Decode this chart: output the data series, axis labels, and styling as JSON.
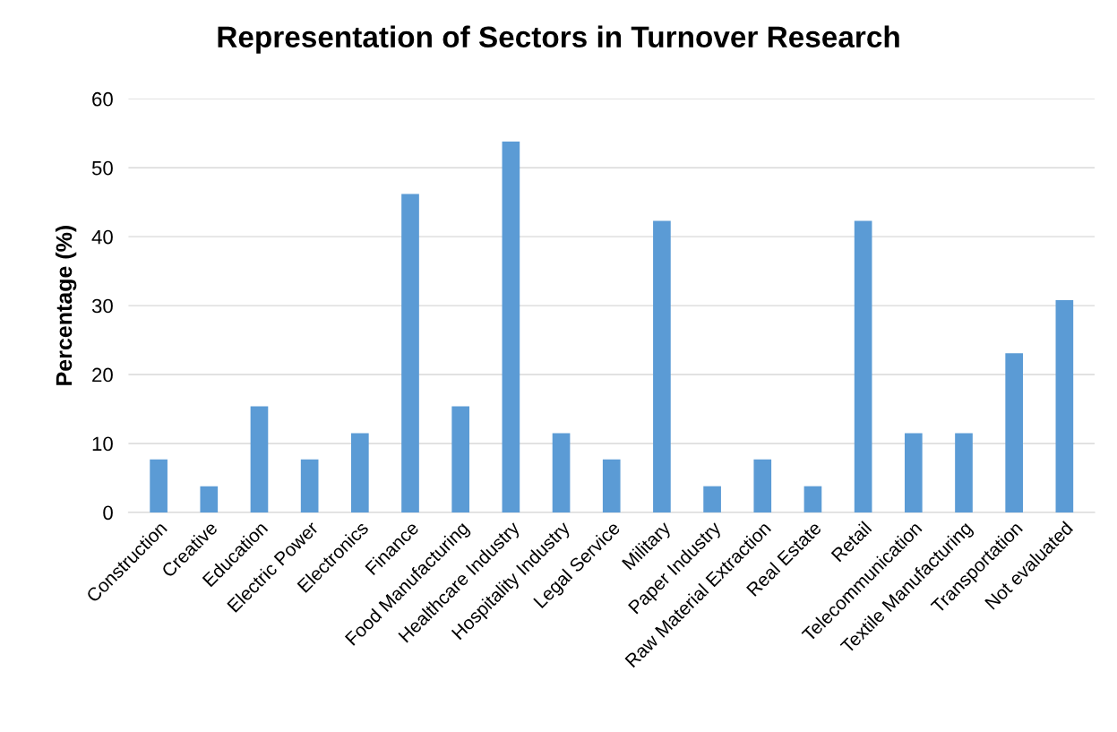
{
  "chart_data": {
    "type": "bar",
    "title": "Representation of Sectors in Turnover Research",
    "ylabel": "Percentage (%)",
    "categories": [
      "Construction",
      "Creative",
      "Education",
      "Electric Power",
      "Electronics",
      "Finance",
      "Food Manufacturing",
      "Healthcare Industry",
      "Hospitality Industry",
      "Legal Service",
      "Military",
      "Paper Industry",
      "Raw Material Extraction",
      "Real Estate",
      "Retail",
      "Telecommunication",
      "Textile Manufacturing",
      "Transportation",
      "Not evaluated"
    ],
    "values": [
      7.7,
      3.8,
      15.4,
      7.7,
      11.5,
      46.2,
      15.4,
      53.8,
      11.5,
      7.7,
      42.3,
      3.8,
      7.7,
      3.8,
      42.3,
      11.5,
      11.5,
      23.1,
      30.8
    ],
    "color": "#5b9bd5",
    "ylim": [
      0,
      60
    ],
    "yticks": [
      0,
      10,
      20,
      30,
      40,
      50,
      60
    ],
    "grid": "y",
    "legend": false
  }
}
